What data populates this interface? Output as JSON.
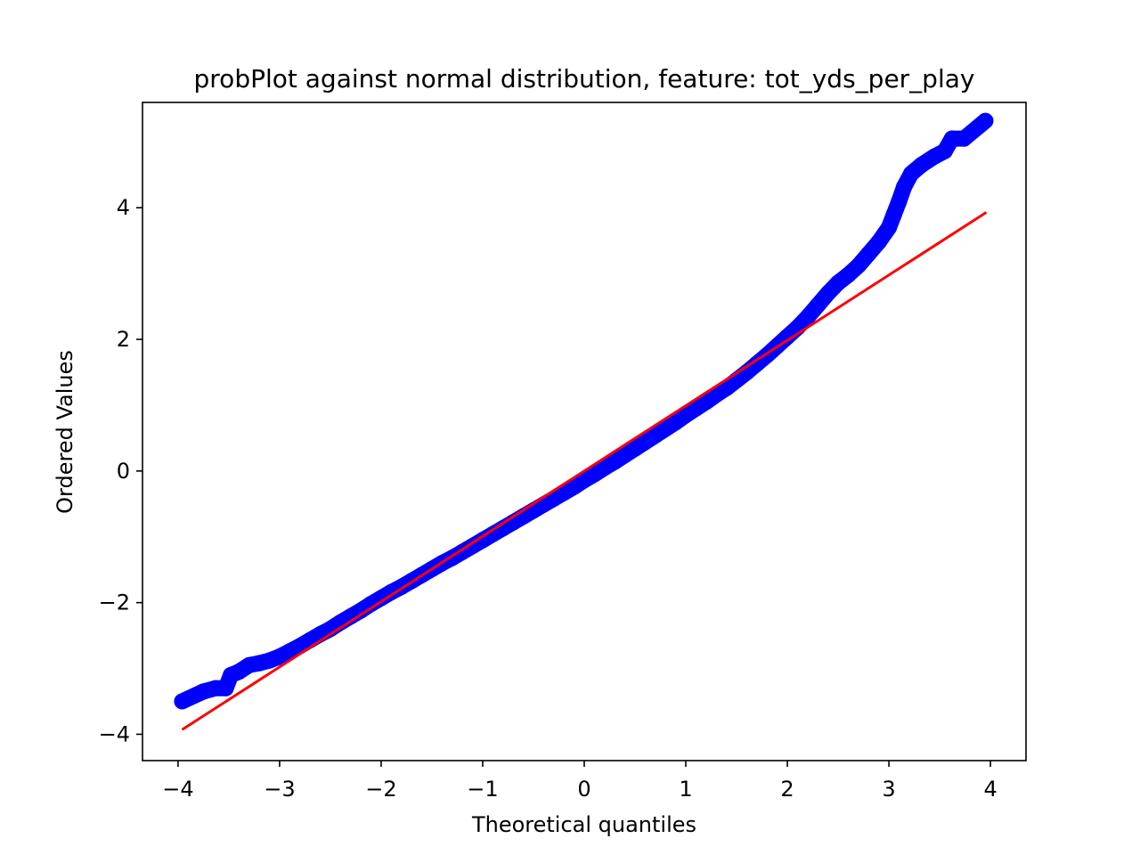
{
  "chart_data": {
    "type": "scatter",
    "title": "probPlot against normal distribution, feature: tot_yds_per_play",
    "xlabel": "Theoretical quantiles",
    "ylabel": "Ordered Values",
    "xlim": [
      -4.35,
      4.35
    ],
    "ylim": [
      -4.4,
      5.6
    ],
    "xticks": [
      -4,
      -3,
      -2,
      -1,
      0,
      1,
      2,
      3,
      4
    ],
    "xtick_labels": [
      "−4",
      "−3",
      "−2",
      "−1",
      "0",
      "1",
      "2",
      "3",
      "4"
    ],
    "yticks": [
      -4,
      -2,
      0,
      2,
      4
    ],
    "ytick_labels": [
      "−4",
      "−2",
      "0",
      "2",
      "4"
    ],
    "grid": false,
    "series": [
      {
        "kind": "scatter",
        "color": "#0000ff",
        "points": [
          [
            -3.96,
            -3.5
          ],
          [
            -3.75,
            -3.35
          ],
          [
            -3.63,
            -3.3
          ],
          [
            -3.53,
            -3.3
          ],
          [
            -3.48,
            -3.1
          ],
          [
            -3.4,
            -3.05
          ],
          [
            -3.3,
            -2.95
          ],
          [
            -3.2,
            -2.92
          ],
          [
            -3.1,
            -2.88
          ],
          [
            -3.0,
            -2.82
          ],
          [
            -2.9,
            -2.74
          ],
          [
            -2.8,
            -2.66
          ],
          [
            -2.7,
            -2.57
          ],
          [
            -2.6,
            -2.48
          ],
          [
            -2.5,
            -2.4
          ],
          [
            -2.4,
            -2.3
          ],
          [
            -2.3,
            -2.21
          ],
          [
            -2.2,
            -2.12
          ],
          [
            -2.1,
            -2.02
          ],
          [
            -2.0,
            -1.93
          ],
          [
            -1.9,
            -1.84
          ],
          [
            -1.8,
            -1.76
          ],
          [
            -1.7,
            -1.67
          ],
          [
            -1.6,
            -1.58
          ],
          [
            -1.5,
            -1.49
          ],
          [
            -1.4,
            -1.4
          ],
          [
            -1.3,
            -1.32
          ],
          [
            -1.2,
            -1.23
          ],
          [
            -1.1,
            -1.14
          ],
          [
            -1.0,
            -1.05
          ],
          [
            -0.9,
            -0.96
          ],
          [
            -0.8,
            -0.87
          ],
          [
            -0.7,
            -0.78
          ],
          [
            -0.6,
            -0.69
          ],
          [
            -0.5,
            -0.6
          ],
          [
            -0.4,
            -0.51
          ],
          [
            -0.3,
            -0.42
          ],
          [
            -0.2,
            -0.33
          ],
          [
            -0.1,
            -0.24
          ],
          [
            0.0,
            -0.14
          ],
          [
            0.1,
            -0.05
          ],
          [
            0.2,
            0.05
          ],
          [
            0.3,
            0.14
          ],
          [
            0.4,
            0.24
          ],
          [
            0.5,
            0.34
          ],
          [
            0.6,
            0.44
          ],
          [
            0.7,
            0.54
          ],
          [
            0.8,
            0.64
          ],
          [
            0.9,
            0.74
          ],
          [
            1.0,
            0.85
          ],
          [
            1.1,
            0.95
          ],
          [
            1.2,
            1.05
          ],
          [
            1.3,
            1.16
          ],
          [
            1.4,
            1.26
          ],
          [
            1.5,
            1.38
          ],
          [
            1.6,
            1.5
          ],
          [
            1.7,
            1.63
          ],
          [
            1.8,
            1.76
          ],
          [
            1.9,
            1.9
          ],
          [
            2.0,
            2.04
          ],
          [
            2.1,
            2.18
          ],
          [
            2.2,
            2.34
          ],
          [
            2.3,
            2.52
          ],
          [
            2.4,
            2.7
          ],
          [
            2.5,
            2.86
          ],
          [
            2.6,
            2.98
          ],
          [
            2.7,
            3.12
          ],
          [
            2.8,
            3.3
          ],
          [
            2.9,
            3.48
          ],
          [
            3.0,
            3.7
          ],
          [
            3.05,
            3.9
          ],
          [
            3.1,
            4.1
          ],
          [
            3.15,
            4.32
          ],
          [
            3.22,
            4.52
          ],
          [
            3.32,
            4.65
          ],
          [
            3.45,
            4.78
          ],
          [
            3.55,
            4.86
          ],
          [
            3.62,
            5.05
          ],
          [
            3.74,
            5.05
          ],
          [
            3.95,
            5.32
          ]
        ]
      },
      {
        "kind": "line",
        "color": "#ff0000",
        "x": [
          -3.96,
          3.96
        ],
        "y": [
          -3.93,
          3.93
        ]
      }
    ]
  }
}
